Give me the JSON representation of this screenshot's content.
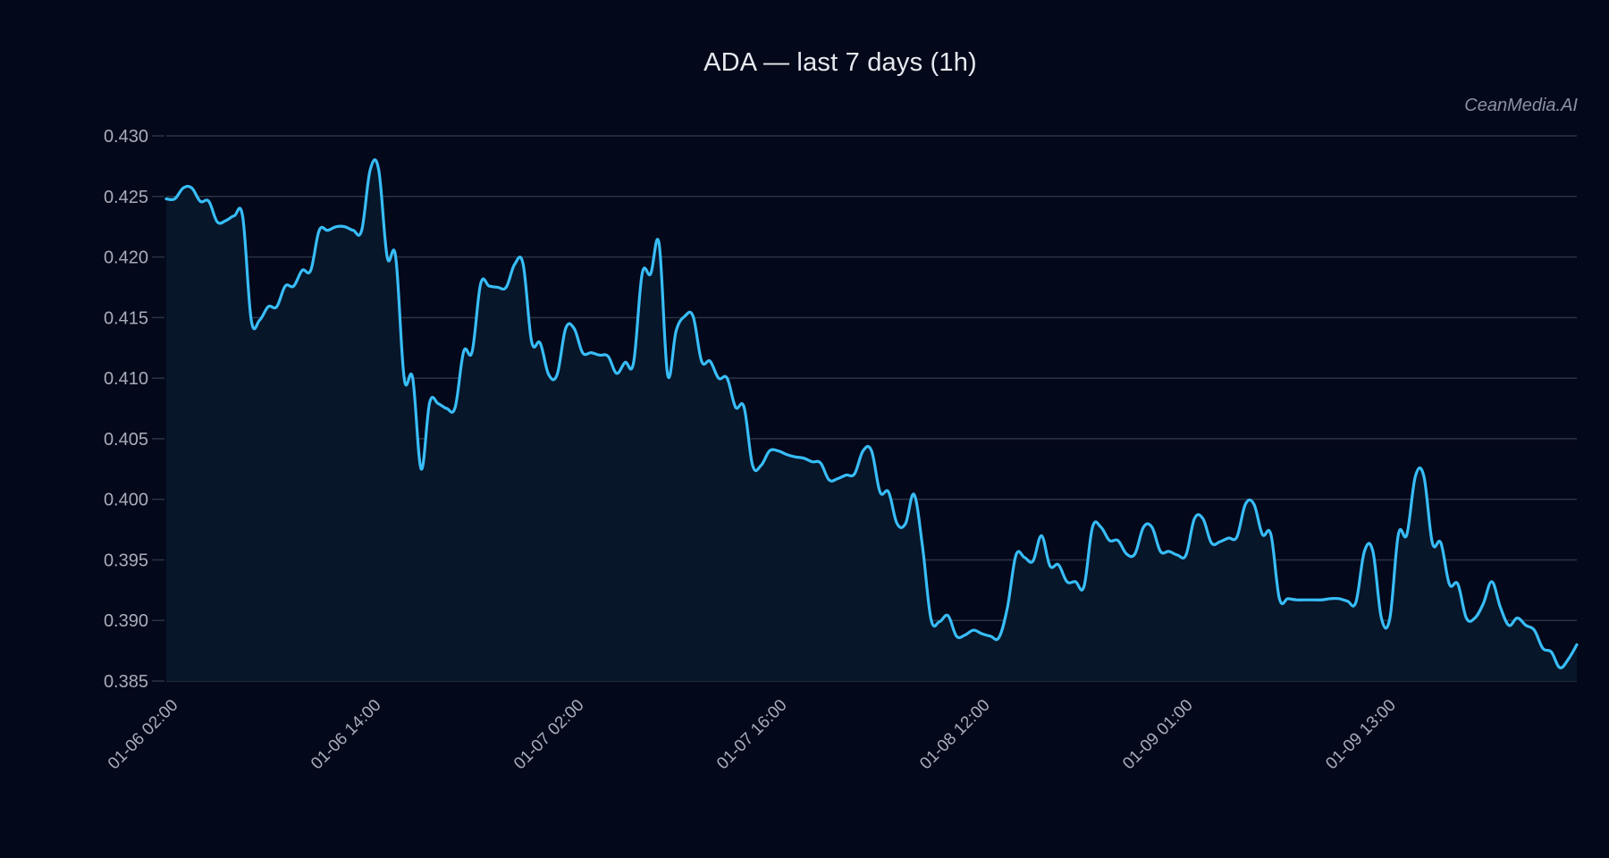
{
  "header": {
    "title": "ADA — last 7 days (1h)",
    "watermark": "CeanMedia.AI"
  },
  "colors": {
    "background": "#03081a",
    "line": "#38bdf8",
    "area_fill": "#071629",
    "grid": "#2a3444",
    "tick_text": "#a7adb9",
    "title_text": "#e6e9ef"
  },
  "chart_data": {
    "type": "area",
    "title": "ADA — last 7 days (1h)",
    "xlabel": "",
    "ylabel": "",
    "ylim": [
      0.385,
      0.43
    ],
    "yticks": [
      "0.430",
      "0.425",
      "0.420",
      "0.415",
      "0.410",
      "0.405",
      "0.400",
      "0.395",
      "0.390",
      "0.385"
    ],
    "ytick_values": [
      0.43,
      0.425,
      0.42,
      0.415,
      0.41,
      0.405,
      0.4,
      0.395,
      0.39,
      0.385
    ],
    "xticks": [
      "01-06 02:00",
      "01-06 14:00",
      "01-07 02:00",
      "01-07 16:00",
      "01-08 12:00",
      "01-09 01:00",
      "01-09 13:00"
    ],
    "xtick_every": 24,
    "grid": true,
    "legend": null,
    "series": [
      {
        "name": "ADA",
        "values": [
          0.4248,
          0.4248,
          0.4257,
          0.4257,
          0.4246,
          0.4246,
          0.4229,
          0.423,
          0.4234,
          0.4233,
          0.4148,
          0.4148,
          0.4159,
          0.4159,
          0.4176,
          0.4176,
          0.4189,
          0.4189,
          0.4222,
          0.4222,
          0.4225,
          0.4225,
          0.4222,
          0.4222,
          0.4272,
          0.4272,
          0.42,
          0.42,
          0.41,
          0.41,
          0.4025,
          0.408,
          0.4079,
          0.4075,
          0.4076,
          0.4122,
          0.4122,
          0.4178,
          0.4176,
          0.4175,
          0.4175,
          0.4194,
          0.4194,
          0.413,
          0.4129,
          0.4103,
          0.4103,
          0.4141,
          0.4141,
          0.4121,
          0.4121,
          0.4119,
          0.4118,
          0.4104,
          0.4113,
          0.4113,
          0.4186,
          0.4186,
          0.4211,
          0.4103,
          0.4139,
          0.4151,
          0.4151,
          0.4114,
          0.4114,
          0.41,
          0.41,
          0.4076,
          0.4076,
          0.4028,
          0.4028,
          0.404,
          0.404,
          0.4037,
          0.4035,
          0.4034,
          0.4031,
          0.403,
          0.4016,
          0.4017,
          0.402,
          0.4021,
          0.404,
          0.404,
          0.4006,
          0.4006,
          0.398,
          0.398,
          0.4004,
          0.3961,
          0.3901,
          0.3899,
          0.3904,
          0.3887,
          0.3888,
          0.3892,
          0.3889,
          0.3887,
          0.3886,
          0.3911,
          0.3954,
          0.3952,
          0.3949,
          0.397,
          0.3945,
          0.3946,
          0.3932,
          0.3932,
          0.3928,
          0.3977,
          0.3977,
          0.3966,
          0.3966,
          0.3955,
          0.3955,
          0.3977,
          0.3977,
          0.3957,
          0.3957,
          0.3954,
          0.3954,
          0.3984,
          0.3984,
          0.3964,
          0.3965,
          0.3968,
          0.3969,
          0.3996,
          0.3996,
          0.3971,
          0.3971,
          0.3918,
          0.3918,
          0.3917,
          0.3917,
          0.3917,
          0.3917,
          0.3918,
          0.3918,
          0.3916,
          0.3915,
          0.3957,
          0.3957,
          0.3902,
          0.3902,
          0.3971,
          0.3971,
          0.4019,
          0.4019,
          0.3964,
          0.3964,
          0.393,
          0.393,
          0.3902,
          0.3902,
          0.3914,
          0.3932,
          0.3911,
          0.3896,
          0.3902,
          0.3896,
          0.3892,
          0.3877,
          0.3874,
          0.3861,
          0.3868,
          0.388
        ]
      }
    ]
  }
}
